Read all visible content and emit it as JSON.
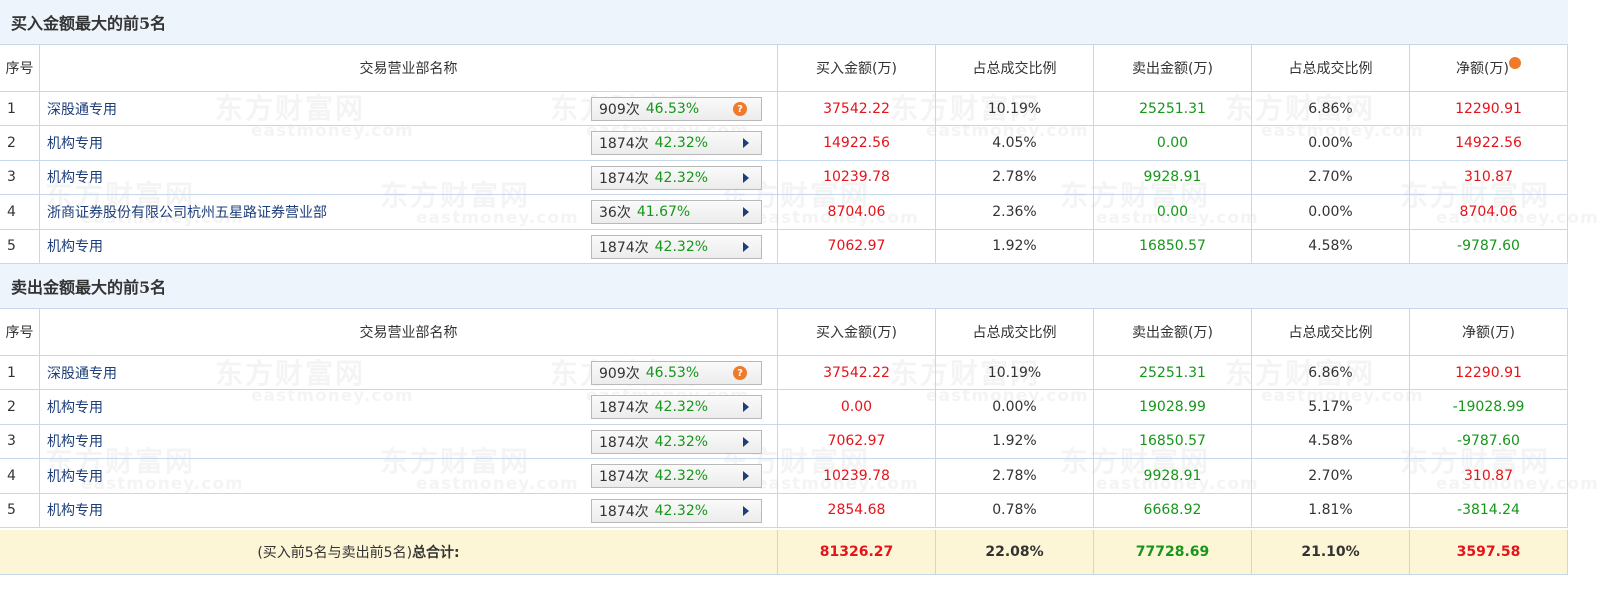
{
  "watermark": {
    "name": "东方财富网",
    "url": "eastmoney.com"
  },
  "sections": [
    {
      "title": "买入金额最大的前5名",
      "header": [
        "序号",
        "交易营业部名称",
        "买入金额(万)",
        "占总成交比例",
        "卖出金额(万)",
        "占总成交比例",
        "净额(万)"
      ],
      "header_help": true,
      "rows": [
        {
          "rank": "1",
          "name": "深股通专用",
          "count": "909次",
          "rate": "46.53%",
          "icon": "help",
          "cells": [
            "37542.22",
            "10.19%",
            "25251.31",
            "6.86%",
            "12290.91"
          ]
        },
        {
          "rank": "2",
          "name": "机构专用",
          "count": "1874次",
          "rate": "42.32%",
          "icon": "arrow",
          "cells": [
            "14922.56",
            "4.05%",
            "0.00",
            "0.00%",
            "14922.56"
          ]
        },
        {
          "rank": "3",
          "name": "机构专用",
          "count": "1874次",
          "rate": "42.32%",
          "icon": "arrow",
          "cells": [
            "10239.78",
            "2.78%",
            "9928.91",
            "2.70%",
            "310.87"
          ]
        },
        {
          "rank": "4",
          "name": "浙商证券股份有限公司杭州五星路证券营业部",
          "count": "36次",
          "rate": "41.67%",
          "icon": "arrow",
          "cells": [
            "8704.06",
            "2.36%",
            "0.00",
            "0.00%",
            "8704.06"
          ]
        },
        {
          "rank": "5",
          "name": "机构专用",
          "count": "1874次",
          "rate": "42.32%",
          "icon": "arrow",
          "cells": [
            "7062.97",
            "1.92%",
            "16850.57",
            "4.58%",
            "-9787.60"
          ]
        }
      ]
    },
    {
      "title": "卖出金额最大的前5名",
      "header": [
        "序号",
        "交易营业部名称",
        "买入金额(万)",
        "占总成交比例",
        "卖出金额(万)",
        "占总成交比例",
        "净额(万)"
      ],
      "header_help": false,
      "rows": [
        {
          "rank": "1",
          "name": "深股通专用",
          "count": "909次",
          "rate": "46.53%",
          "icon": "help",
          "cells": [
            "37542.22",
            "10.19%",
            "25251.31",
            "6.86%",
            "12290.91"
          ]
        },
        {
          "rank": "2",
          "name": "机构专用",
          "count": "1874次",
          "rate": "42.32%",
          "icon": "arrow",
          "cells": [
            "0.00",
            "0.00%",
            "19028.99",
            "5.17%",
            "-19028.99"
          ]
        },
        {
          "rank": "3",
          "name": "机构专用",
          "count": "1874次",
          "rate": "42.32%",
          "icon": "arrow",
          "cells": [
            "7062.97",
            "1.92%",
            "16850.57",
            "4.58%",
            "-9787.60"
          ]
        },
        {
          "rank": "4",
          "name": "机构专用",
          "count": "1874次",
          "rate": "42.32%",
          "icon": "arrow",
          "cells": [
            "10239.78",
            "2.78%",
            "9928.91",
            "2.70%",
            "310.87"
          ]
        },
        {
          "rank": "5",
          "name": "机构专用",
          "count": "1874次",
          "rate": "42.32%",
          "icon": "arrow",
          "cells": [
            "2854.68",
            "0.78%",
            "6668.92",
            "1.81%",
            "-3814.24"
          ]
        }
      ]
    }
  ],
  "total": {
    "label_prefix": "(买入前5名与卖出前5名)",
    "label_bold": "总合计:",
    "cells": [
      "81326.27",
      "22.08%",
      "77728.69",
      "21.10%",
      "3597.58"
    ]
  }
}
